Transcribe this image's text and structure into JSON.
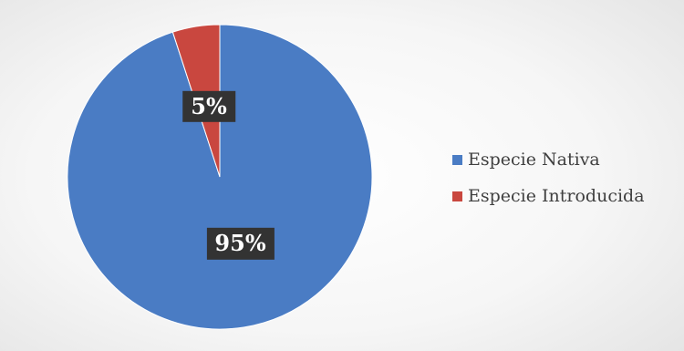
{
  "chart_data": {
    "type": "pie",
    "title": "",
    "categories": [
      "Especie Nativa",
      "Especie Introducida"
    ],
    "values": [
      95,
      5
    ],
    "labels": [
      "95%",
      "5%"
    ],
    "colors": [
      "#4A7CC4",
      "#C9473F"
    ],
    "legend": {
      "placement": "right",
      "entries": [
        "Especie Nativa",
        "Especie Introducida"
      ]
    }
  }
}
